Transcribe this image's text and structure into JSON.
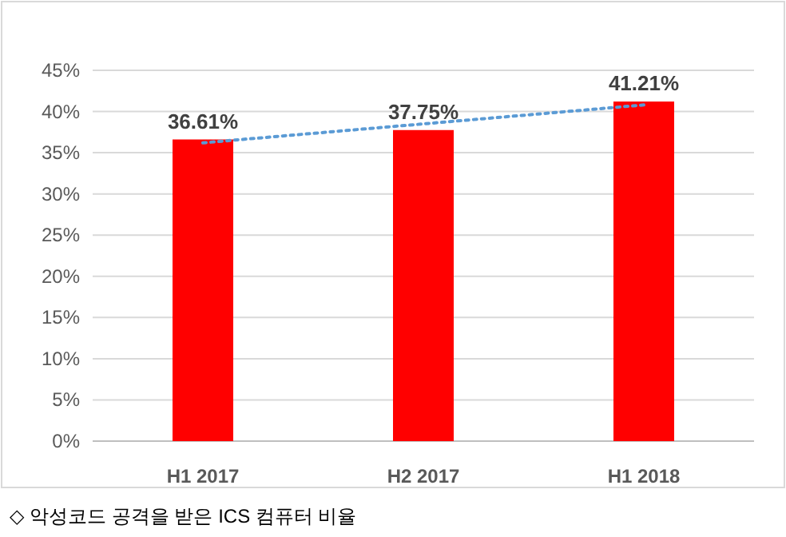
{
  "chart_data": {
    "type": "bar",
    "categories": [
      "H1 2017",
      "H2 2017",
      "H1 2018"
    ],
    "series": [
      {
        "color": "#ff0000",
        "values": [
          36.61,
          37.75,
          41.21
        ],
        "value_labels": [
          "36.61%",
          "37.75%",
          "41.21%"
        ]
      },
      {
        "type": "line",
        "color": "#5b9bd5",
        "values": [
          36.2,
          38.5,
          40.8
        ],
        "line_style": "dotted"
      }
    ],
    "ylim": [
      0,
      45
    ],
    "yticks": [
      {
        "value": 0,
        "label": "0%"
      },
      {
        "value": 5,
        "label": "5%"
      },
      {
        "value": 10,
        "label": "10%"
      },
      {
        "value": 15,
        "label": "15%"
      },
      {
        "value": 20,
        "label": "20%"
      },
      {
        "value": 25,
        "label": "25%"
      },
      {
        "value": 30,
        "label": "30%"
      },
      {
        "value": 35,
        "label": "35%"
      },
      {
        "value": 40,
        "label": "40%"
      },
      {
        "value": 45,
        "label": "45%"
      }
    ],
    "grid": "y",
    "annotations": [
      "◇ 악성코드 공격을 받은 ICS 컴퓨터 비율"
    ]
  }
}
